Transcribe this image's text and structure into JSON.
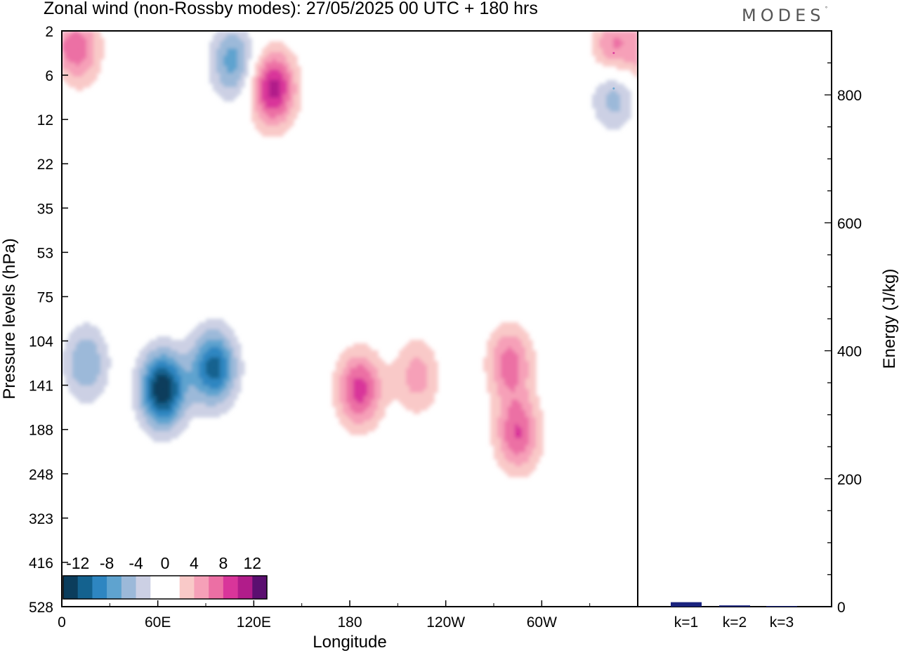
{
  "header": {
    "title": "Zonal wind (non-Rossby modes):  27/05/2025  00 UTC  + 180 hrs",
    "brand": "MODES"
  },
  "chart_data": [
    {
      "type": "heatmap",
      "title": "Zonal wind (non-Rossby modes):  27/05/2025  00 UTC  + 180 hrs",
      "xlabel": "Longitude",
      "ylabel": "Pressure levels (hPa)",
      "x_ticks": [
        "0",
        "60E",
        "120E",
        "180",
        "120W",
        "60W"
      ],
      "x_tick_lon": [
        0,
        60,
        120,
        180,
        240,
        300
      ],
      "xlim": [
        0,
        360
      ],
      "y_ticks": [
        2,
        6,
        12,
        22,
        35,
        53,
        75,
        104,
        141,
        188,
        248,
        323,
        416,
        528
      ],
      "colorbar": {
        "tick_labels": [
          "-12",
          "-8",
          "-4",
          "0",
          "4",
          "8",
          "12"
        ],
        "levels": [
          -14,
          -12,
          -10,
          -8,
          -6,
          -4,
          -2,
          0,
          2,
          4,
          6,
          8,
          10,
          12,
          14
        ],
        "colors": [
          "#0b3d5c",
          "#14628f",
          "#2e86c1",
          "#5fa3cf",
          "#9cb9d9",
          "#ccd0e4",
          "#ffffff",
          "#ffffff",
          "#f9c9c8",
          "#f6a0b8",
          "#ec6fa4",
          "#d9359a",
          "#b11c8a",
          "#5b0f70"
        ]
      },
      "features": [
        {
          "lon": 63,
          "level_index": 8.1,
          "value": -14
        },
        {
          "lon": 95,
          "level_index": 7.6,
          "value": -11
        },
        {
          "lon": 15,
          "level_index": 7.5,
          "value": -6
        },
        {
          "lon": 107,
          "level_index": 0.7,
          "value": -7
        },
        {
          "lon": 345,
          "level_index": 1.3,
          "value": -7
        },
        {
          "lon": 132,
          "level_index": 1.3,
          "value": 11
        },
        {
          "lon": 10,
          "level_index": 0.4,
          "value": 7
        },
        {
          "lon": 345,
          "level_index": 0.5,
          "value": 8
        },
        {
          "lon": 186,
          "level_index": 8.1,
          "value": 9
        },
        {
          "lon": 280,
          "level_index": 7.5,
          "value": 7
        },
        {
          "lon": 285,
          "level_index": 9.1,
          "value": 8
        },
        {
          "lon": 222,
          "level_index": 7.8,
          "value": 5
        }
      ]
    },
    {
      "type": "bar",
      "ylabel": "Energy (J/kg)",
      "categories": [
        "k=1",
        "k=2",
        "k=3"
      ],
      "values": [
        7,
        2,
        1
      ],
      "ylim": [
        0,
        900
      ],
      "y_ticks": [
        0,
        200,
        400,
        600,
        800
      ],
      "bar_color": "#1a237e"
    }
  ]
}
